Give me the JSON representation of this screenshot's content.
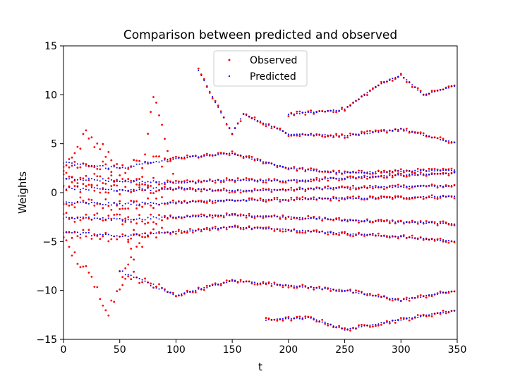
{
  "chart_data": {
    "type": "scatter",
    "title": "Comparison between predicted and observed",
    "xlabel": "t",
    "ylabel": "Weights",
    "xlim": [
      0,
      350
    ],
    "ylim": [
      -15,
      15
    ],
    "xticks": [
      0,
      50,
      100,
      150,
      200,
      250,
      300,
      350
    ],
    "yticks": [
      -15,
      -10,
      -5,
      0,
      5,
      10,
      15
    ],
    "xtick_labels": [
      "0",
      "50",
      "100",
      "150",
      "200",
      "250",
      "300",
      "350"
    ],
    "ytick_labels": [
      "−15",
      "−10",
      "−5",
      "0",
      "5",
      "10",
      "15"
    ],
    "grid": false,
    "legend_position": "upper center",
    "series": [
      {
        "name": "Observed",
        "color": "#ff0000",
        "marker": "dot",
        "trajectories": [
          {
            "x": [
              0,
              50,
              100,
              150,
              200,
              250,
              300,
              350
            ],
            "y": [
              0.5,
              0.3,
              0.4,
              0.2,
              0.3,
              0.5,
              0.6,
              0.7
            ]
          },
          {
            "x": [
              0,
              50,
              100,
              150,
              200,
              250,
              300,
              350
            ],
            "y": [
              -1.0,
              -1.2,
              -1.0,
              -0.8,
              -0.7,
              -0.6,
              -0.5,
              -0.4
            ]
          },
          {
            "x": [
              0,
              50,
              100,
              150,
              200,
              250,
              300,
              350
            ],
            "y": [
              1.5,
              1.2,
              1.0,
              1.3,
              1.2,
              1.5,
              1.8,
              2.0
            ]
          },
          {
            "x": [
              0,
              50,
              100,
              150,
              200,
              250,
              300,
              350
            ],
            "y": [
              -2.5,
              -2.8,
              -2.5,
              -2.3,
              -2.5,
              -2.8,
              -3.0,
              -3.2
            ]
          },
          {
            "x": [
              0,
              50,
              100,
              150,
              200,
              250,
              300,
              350
            ],
            "y": [
              3.0,
              2.5,
              3.5,
              4.0,
              2.5,
              2.0,
              2.2,
              2.3
            ]
          },
          {
            "x": [
              0,
              50,
              100,
              150,
              200,
              250,
              300,
              350
            ],
            "y": [
              -4.0,
              -4.5,
              -4.0,
              -3.5,
              -3.8,
              -4.2,
              -4.5,
              -5.0
            ]
          },
          {
            "x": [
              120,
              150,
              160,
              200,
              250,
              300,
              350
            ],
            "y": [
              12.5,
              6.0,
              8.0,
              6.0,
              5.8,
              6.5,
              5.0
            ]
          },
          {
            "x": [
              200,
              250,
              280,
              300,
              320,
              350
            ],
            "y": [
              8.0,
              8.5,
              11.0,
              12.0,
              10.0,
              11.0
            ]
          },
          {
            "x": [
              50,
              100,
              150,
              200,
              250,
              300,
              350
            ],
            "y": [
              -8.0,
              -10.5,
              -9.0,
              -9.5,
              -10.0,
              -11.0,
              -10.0
            ]
          },
          {
            "x": [
              180,
              220,
              250,
              300,
              350
            ],
            "y": [
              -13.0,
              -12.8,
              -14.0,
              -13.0,
              -12.0
            ]
          },
          {
            "x": [
              0,
              20,
              40,
              60,
              80,
              100
            ],
            "y": [
              2.0,
              6.0,
              4.0,
              -6.0,
              10.0,
              1.0
            ]
          },
          {
            "x": [
              0,
              20,
              40,
              60,
              80
            ],
            "y": [
              -5.0,
              -8.0,
              -12.0,
              -7.0,
              -3.0
            ]
          }
        ]
      },
      {
        "name": "Predicted",
        "color": "#0000ff",
        "marker": "dot",
        "trajectories": [
          {
            "x": [
              0,
              50,
              100,
              150,
              200,
              250,
              300,
              350
            ],
            "y": [
              0.5,
              0.3,
              0.4,
              0.2,
              0.3,
              0.5,
              0.6,
              0.7
            ]
          },
          {
            "x": [
              0,
              50,
              100,
              150,
              200,
              250,
              300,
              350
            ],
            "y": [
              -1.0,
              -1.2,
              -1.0,
              -0.8,
              -0.7,
              -0.6,
              -0.5,
              -0.4
            ]
          },
          {
            "x": [
              0,
              50,
              100,
              150,
              200,
              250,
              300,
              350
            ],
            "y": [
              1.5,
              1.2,
              1.0,
              1.3,
              1.2,
              1.5,
              1.8,
              2.0
            ]
          },
          {
            "x": [
              0,
              50,
              100,
              150,
              200,
              250,
              300,
              350
            ],
            "y": [
              -2.5,
              -2.8,
              -2.5,
              -2.3,
              -2.5,
              -2.8,
              -3.0,
              -3.2
            ]
          },
          {
            "x": [
              0,
              50,
              100,
              150,
              200,
              250,
              300,
              350
            ],
            "y": [
              3.0,
              2.5,
              3.5,
              4.0,
              2.5,
              2.0,
              2.2,
              2.3
            ]
          },
          {
            "x": [
              0,
              50,
              100,
              150,
              200,
              250,
              300,
              350
            ],
            "y": [
              -4.0,
              -4.5,
              -4.0,
              -3.5,
              -3.8,
              -4.2,
              -4.5,
              -5.0
            ]
          },
          {
            "x": [
              120,
              150,
              160,
              200,
              250,
              300,
              350
            ],
            "y": [
              12.5,
              6.0,
              8.0,
              6.0,
              5.8,
              6.5,
              5.0
            ]
          },
          {
            "x": [
              200,
              250,
              280,
              300,
              320,
              350
            ],
            "y": [
              8.0,
              8.5,
              11.0,
              12.0,
              10.0,
              11.0
            ]
          },
          {
            "x": [
              50,
              100,
              150,
              200,
              250,
              300,
              350
            ],
            "y": [
              -8.0,
              -10.5,
              -9.0,
              -9.5,
              -10.0,
              -11.0,
              -10.0
            ]
          },
          {
            "x": [
              180,
              220,
              250,
              300,
              350
            ],
            "y": [
              -13.0,
              -12.8,
              -14.0,
              -13.0,
              -12.0
            ]
          }
        ]
      }
    ]
  }
}
